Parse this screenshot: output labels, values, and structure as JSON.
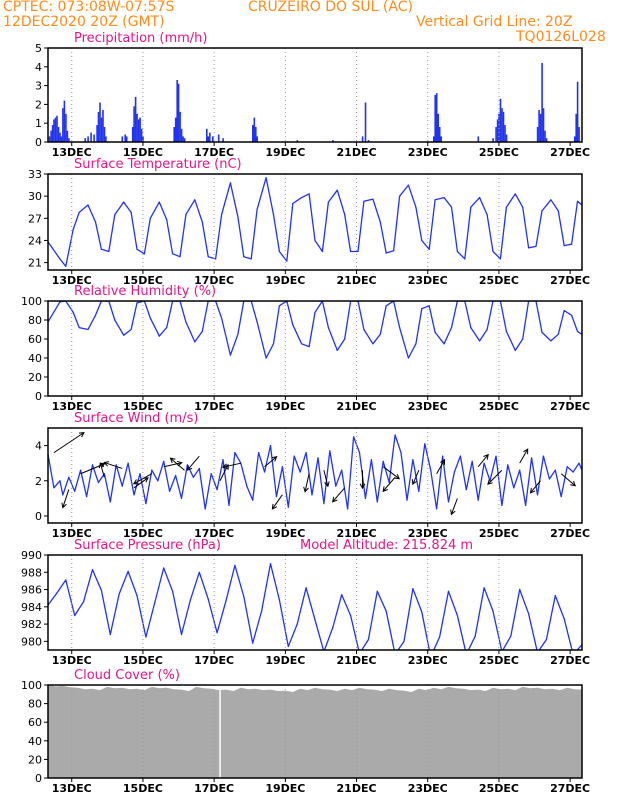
{
  "header": {
    "line1_left": "CPTEC:   073:08W-07:57S",
    "line1_station": "CRUZEIRO DO SUL (AC)",
    "line2_left": "12DEC2020 20Z (GMT)",
    "line2_right": "Vertical Grid Line: 20Z",
    "line3_right": "TQ0126L028"
  },
  "colors": {
    "header_text": "#ff8c1a",
    "panel_title": "#e0188a",
    "series": "#2233ee",
    "cloud_fill": "#aaaaaa",
    "grid": "#999999",
    "axis": "#000000"
  },
  "chart_data": [
    {
      "id": "precip",
      "type": "bar",
      "title": "Precipitation (mm/h)",
      "unit": "mm/h",
      "x_ticks": [
        "13DEC",
        "15DEC",
        "17DEC",
        "19DEC",
        "21DEC",
        "23DEC",
        "25DEC",
        "27DEC"
      ],
      "y_ticks": [
        0,
        1,
        2,
        3,
        4,
        5
      ],
      "ylim": [
        0,
        5
      ],
      "x_unit": "hours since 12DEC2020 20Z",
      "bars": [
        {
          "x": 1,
          "y": 0.3
        },
        {
          "x": 2,
          "y": 0.6
        },
        {
          "x": 3,
          "y": 0.9
        },
        {
          "x": 4,
          "y": 1.2
        },
        {
          "x": 5,
          "y": 1.3
        },
        {
          "x": 6,
          "y": 1.4
        },
        {
          "x": 7,
          "y": 0.8
        },
        {
          "x": 8,
          "y": 0.5
        },
        {
          "x": 9,
          "y": 0.3
        },
        {
          "x": 10,
          "y": 1.8
        },
        {
          "x": 11,
          "y": 2.2
        },
        {
          "x": 12,
          "y": 1.5
        },
        {
          "x": 13,
          "y": 0.6
        },
        {
          "x": 14,
          "y": 0.2
        },
        {
          "x": 25,
          "y": 0.2
        },
        {
          "x": 27,
          "y": 0.3
        },
        {
          "x": 29,
          "y": 0.5
        },
        {
          "x": 31,
          "y": 0.4
        },
        {
          "x": 33,
          "y": 0.9
        },
        {
          "x": 34,
          "y": 1.6
        },
        {
          "x": 35,
          "y": 2.1
        },
        {
          "x": 36,
          "y": 1.3
        },
        {
          "x": 37,
          "y": 1.7
        },
        {
          "x": 38,
          "y": 0.8
        },
        {
          "x": 39,
          "y": 0.3
        },
        {
          "x": 50,
          "y": 0.3
        },
        {
          "x": 52,
          "y": 0.4
        },
        {
          "x": 53,
          "y": 0.3
        },
        {
          "x": 57,
          "y": 0.8
        },
        {
          "x": 58,
          "y": 1.9
        },
        {
          "x": 59,
          "y": 2.4
        },
        {
          "x": 60,
          "y": 1.5
        },
        {
          "x": 61,
          "y": 1.2
        },
        {
          "x": 62,
          "y": 1.3
        },
        {
          "x": 63,
          "y": 0.7
        },
        {
          "x": 64,
          "y": 0.3
        },
        {
          "x": 85,
          "y": 0.8
        },
        {
          "x": 86,
          "y": 1.3
        },
        {
          "x": 87,
          "y": 3.3
        },
        {
          "x": 88,
          "y": 3.1
        },
        {
          "x": 89,
          "y": 1.6
        },
        {
          "x": 90,
          "y": 0.7
        },
        {
          "x": 91,
          "y": 0.3
        },
        {
          "x": 92,
          "y": 0.2
        },
        {
          "x": 107,
          "y": 0.7
        },
        {
          "x": 108,
          "y": 0.3
        },
        {
          "x": 109,
          "y": 0.5
        },
        {
          "x": 111,
          "y": 0.3
        },
        {
          "x": 115,
          "y": 0.4
        },
        {
          "x": 118,
          "y": 0.2
        },
        {
          "x": 138,
          "y": 0.9
        },
        {
          "x": 139,
          "y": 1.3
        },
        {
          "x": 140,
          "y": 0.8
        },
        {
          "x": 141,
          "y": 0.3
        },
        {
          "x": 168,
          "y": 0.1
        },
        {
          "x": 192,
          "y": 0.1
        },
        {
          "x": 212,
          "y": 0.3
        },
        {
          "x": 214,
          "y": 2.1
        },
        {
          "x": 216,
          "y": 0.1
        },
        {
          "x": 260,
          "y": 0.3
        },
        {
          "x": 261,
          "y": 2.5
        },
        {
          "x": 262,
          "y": 2.6
        },
        {
          "x": 263,
          "y": 1.5
        },
        {
          "x": 264,
          "y": 0.8
        },
        {
          "x": 265,
          "y": 0.3
        },
        {
          "x": 290,
          "y": 0.3
        },
        {
          "x": 300,
          "y": 0.2
        },
        {
          "x": 302,
          "y": 0.8
        },
        {
          "x": 303,
          "y": 1.2
        },
        {
          "x": 304,
          "y": 1.5
        },
        {
          "x": 305,
          "y": 2.3
        },
        {
          "x": 306,
          "y": 1.8
        },
        {
          "x": 307,
          "y": 1.6
        },
        {
          "x": 308,
          "y": 0.9
        },
        {
          "x": 309,
          "y": 0.4
        },
        {
          "x": 330,
          "y": 0.8
        },
        {
          "x": 331,
          "y": 1.7
        },
        {
          "x": 332,
          "y": 1.5
        },
        {
          "x": 333,
          "y": 4.2
        },
        {
          "x": 334,
          "y": 1.8
        },
        {
          "x": 335,
          "y": 0.6
        },
        {
          "x": 336,
          "y": 0.2
        },
        {
          "x": 355,
          "y": 0.3
        },
        {
          "x": 356,
          "y": 1.5
        },
        {
          "x": 357,
          "y": 3.2
        },
        {
          "x": 358,
          "y": 0.8
        }
      ]
    },
    {
      "id": "temp",
      "type": "line",
      "title": "Surface Temperature (nC)",
      "unit": "nC",
      "x_ticks": [
        "13DEC",
        "15DEC",
        "17DEC",
        "19DEC",
        "21DEC",
        "23DEC",
        "25DEC",
        "27DEC"
      ],
      "y_ticks": [
        21,
        24,
        27,
        30,
        33
      ],
      "ylim": [
        20,
        33
      ],
      "x_unit": "hours since 12DEC2020 20Z",
      "x": [
        0,
        8,
        12,
        17,
        21,
        27,
        32,
        36,
        41,
        45,
        51,
        56,
        60,
        65,
        69,
        75,
        80,
        84,
        89,
        93,
        99,
        104,
        108,
        113,
        117,
        123,
        128,
        132,
        137,
        141,
        147,
        152,
        156,
        161,
        165,
        171,
        176,
        180,
        185,
        189,
        195,
        200,
        204,
        209,
        213,
        219,
        224,
        228,
        233,
        237,
        243,
        248,
        252,
        257,
        261,
        267,
        272,
        276,
        281,
        285,
        291,
        296,
        300,
        305,
        309,
        315,
        320,
        324,
        329,
        333,
        339,
        344,
        348,
        353,
        357,
        360
      ],
      "y": [
        23.8,
        21.5,
        20.5,
        25.5,
        27.8,
        28.8,
        26.5,
        22.8,
        22.5,
        27.5,
        29.2,
        27.8,
        22.8,
        22.2,
        27.0,
        29.2,
        26.8,
        22.2,
        21.8,
        27.5,
        29.5,
        26.5,
        21.8,
        21.5,
        27.5,
        31.8,
        27.2,
        21.8,
        21.5,
        28.2,
        32.5,
        27.5,
        22.5,
        21.2,
        29.0,
        29.8,
        30.3,
        24.0,
        22.5,
        29.2,
        30.8,
        27.5,
        22.5,
        22.5,
        29.3,
        29.6,
        26.5,
        22.3,
        22.6,
        30.0,
        31.5,
        28.5,
        24.0,
        22.8,
        29.5,
        29.8,
        28.5,
        22.5,
        21.5,
        28.5,
        29.8,
        27.5,
        22.5,
        21.5,
        28.5,
        30.3,
        28.5,
        23.0,
        23.2,
        28.0,
        29.5,
        28.0,
        23.3,
        23.5,
        29.3,
        28.8
      ]
    },
    {
      "id": "rh",
      "type": "line",
      "title": "Relative Humidity (%)",
      "unit": "%",
      "x_ticks": [
        "13DEC",
        "15DEC",
        "17DEC",
        "19DEC",
        "21DEC",
        "23DEC",
        "25DEC",
        "27DEC"
      ],
      "y_ticks": [
        0,
        20,
        40,
        60,
        80,
        100
      ],
      "ylim": [
        0,
        100
      ],
      "x_unit": "hours since 12DEC2020 20Z",
      "x": [
        0,
        8,
        12,
        17,
        21,
        27,
        32,
        36,
        41,
        45,
        51,
        56,
        60,
        65,
        69,
        75,
        80,
        84,
        89,
        93,
        99,
        104,
        108,
        113,
        117,
        123,
        128,
        132,
        137,
        141,
        147,
        152,
        156,
        161,
        165,
        171,
        176,
        180,
        185,
        189,
        195,
        200,
        204,
        209,
        213,
        219,
        224,
        228,
        233,
        237,
        243,
        248,
        252,
        257,
        261,
        267,
        272,
        276,
        281,
        285,
        291,
        296,
        300,
        305,
        309,
        315,
        320,
        324,
        329,
        333,
        339,
        344,
        348,
        353,
        357,
        360
      ],
      "y": [
        78,
        99,
        100,
        88,
        72,
        70,
        85,
        100,
        100,
        80,
        64,
        70,
        98,
        100,
        82,
        63,
        72,
        100,
        100,
        78,
        57,
        68,
        100,
        100,
        82,
        43,
        65,
        100,
        100,
        78,
        40,
        55,
        95,
        100,
        75,
        55,
        52,
        88,
        100,
        72,
        48,
        60,
        100,
        100,
        70,
        55,
        65,
        95,
        100,
        72,
        40,
        55,
        92,
        95,
        67,
        55,
        72,
        100,
        100,
        72,
        58,
        70,
        100,
        100,
        68,
        48,
        60,
        100,
        100,
        67,
        58,
        65,
        90,
        85,
        68,
        65
      ]
    },
    {
      "id": "wind",
      "type": "line",
      "title": "Surface Wind (m/s)",
      "unit": "m/s",
      "x_ticks": [
        "13DEC",
        "15DEC",
        "17DEC",
        "19DEC",
        "21DEC",
        "23DEC",
        "25DEC",
        "27DEC"
      ],
      "y_ticks": [
        0,
        2,
        4
      ],
      "ylim": [
        -0.4,
        5
      ],
      "x_unit": "hours since 12DEC2020 20Z",
      "x": [
        0,
        4,
        8,
        10,
        14,
        18,
        22,
        26,
        30,
        34,
        38,
        42,
        46,
        50,
        54,
        58,
        62,
        66,
        70,
        74,
        78,
        82,
        86,
        90,
        94,
        98,
        102,
        106,
        110,
        114,
        118,
        122,
        126,
        130,
        134,
        138,
        142,
        146,
        150,
        154,
        158,
        162,
        166,
        170,
        174,
        178,
        182,
        186,
        190,
        194,
        198,
        202,
        206,
        210,
        214,
        218,
        222,
        226,
        230,
        234,
        238,
        242,
        246,
        250,
        254,
        258,
        262,
        266,
        270,
        274,
        278,
        282,
        286,
        290,
        294,
        298,
        302,
        306,
        310,
        314,
        318,
        322,
        326,
        330,
        334,
        338,
        342,
        346,
        350,
        354,
        358,
        360
      ],
      "y": [
        3.5,
        1.6,
        2.0,
        1.2,
        2.2,
        1.4,
        2.6,
        1.1,
        2.9,
        1.9,
        2.4,
        0.8,
        2.9,
        1.7,
        3.0,
        1.2,
        2.4,
        0.7,
        2.6,
        2.0,
        3.1,
        1.4,
        2.3,
        1.0,
        2.9,
        2.2,
        2.7,
        0.4,
        2.4,
        1.5,
        3.2,
        0.6,
        3.6,
        3.0,
        1.7,
        0.9,
        3.6,
        2.5,
        4.0,
        1.1,
        2.8,
        0.5,
        3.4,
        2.5,
        3.6,
        1.2,
        3.3,
        0.7,
        3.7,
        1.7,
        2.6,
        0.4,
        4.5,
        3.6,
        1.0,
        3.2,
        0.8,
        3.1,
        1.9,
        4.6,
        3.6,
        0.9,
        3.2,
        1.4,
        4.1,
        2.6,
        0.4,
        3.4,
        0.8,
        2.5,
        3.4,
        1.5,
        3.1,
        0.9,
        3.0,
        2.0,
        3.4,
        0.6,
        2.9,
        1.6,
        2.6,
        0.6,
        3.3,
        1.2,
        3.4,
        2.1,
        2.6,
        1.1,
        2.8,
        2.5,
        3.0,
        2.6
      ]
    },
    {
      "id": "pressure",
      "type": "line",
      "title": "Surface Pressure (hPa)",
      "annotation": "Model Altitude: 215.824 m",
      "unit": "hPa",
      "x_ticks": [
        "13DEC",
        "15DEC",
        "17DEC",
        "19DEC",
        "21DEC",
        "23DEC",
        "25DEC",
        "27DEC"
      ],
      "y_ticks": [
        980,
        982,
        984,
        986,
        988,
        990
      ],
      "ylim": [
        979,
        990
      ],
      "x_unit": "hours since 12DEC2020 20Z",
      "x": [
        0,
        6,
        12,
        18,
        24,
        30,
        36,
        42,
        48,
        54,
        60,
        66,
        72,
        78,
        84,
        90,
        96,
        102,
        108,
        114,
        120,
        126,
        132,
        138,
        144,
        150,
        156,
        162,
        168,
        174,
        180,
        186,
        192,
        198,
        204,
        210,
        216,
        222,
        228,
        234,
        240,
        246,
        252,
        258,
        264,
        270,
        276,
        282,
        288,
        294,
        300,
        306,
        312,
        318,
        324,
        330,
        336,
        342,
        348,
        354,
        360
      ],
      "y": [
        984.2,
        985.6,
        987.1,
        983.0,
        984.6,
        988.3,
        985.9,
        980.8,
        985.5,
        988.1,
        985.3,
        980.5,
        984.5,
        988.5,
        985.8,
        980.8,
        984.8,
        988.0,
        984.9,
        981.0,
        984.7,
        988.8,
        985.2,
        979.8,
        983.5,
        989.0,
        984.8,
        979.4,
        982.0,
        986.2,
        982.5,
        978.8,
        981.6,
        985.4,
        983.0,
        978.6,
        980.2,
        985.8,
        983.5,
        978.5,
        980.0,
        986.1,
        983.4,
        978.2,
        980.5,
        985.8,
        983.0,
        978.5,
        980.6,
        986.2,
        983.5,
        978.8,
        980.6,
        986.0,
        983.2,
        978.7,
        980.2,
        985.3,
        982.6,
        978.5,
        979.6
      ]
    },
    {
      "id": "cloud",
      "type": "area",
      "title": "Cloud Cover (%)",
      "unit": "%",
      "x_ticks": [
        "13DEC",
        "15DEC",
        "17DEC",
        "19DEC",
        "21DEC",
        "23DEC",
        "25DEC",
        "27DEC"
      ],
      "y_ticks": [
        0,
        20,
        40,
        60,
        80,
        100
      ],
      "ylim": [
        0,
        100
      ],
      "x_unit": "hours since 12DEC2020 20Z",
      "x": [
        0,
        10,
        20,
        30,
        40,
        50,
        60,
        70,
        80,
        90,
        100,
        110,
        120,
        130,
        140,
        150,
        160,
        170,
        180,
        190,
        200,
        210,
        220,
        230,
        240,
        250,
        260,
        270,
        280,
        290,
        300,
        310,
        320,
        330,
        340,
        350,
        360
      ],
      "y": [
        100,
        99,
        97,
        96,
        98,
        97,
        96,
        98,
        97,
        95,
        98,
        96,
        95,
        97,
        96,
        95,
        94,
        96,
        97,
        95,
        96,
        97,
        95,
        96,
        94,
        96,
        97,
        98,
        96,
        95,
        97,
        96,
        98,
        97,
        96,
        97,
        95
      ],
      "gap_x": 116
    }
  ]
}
